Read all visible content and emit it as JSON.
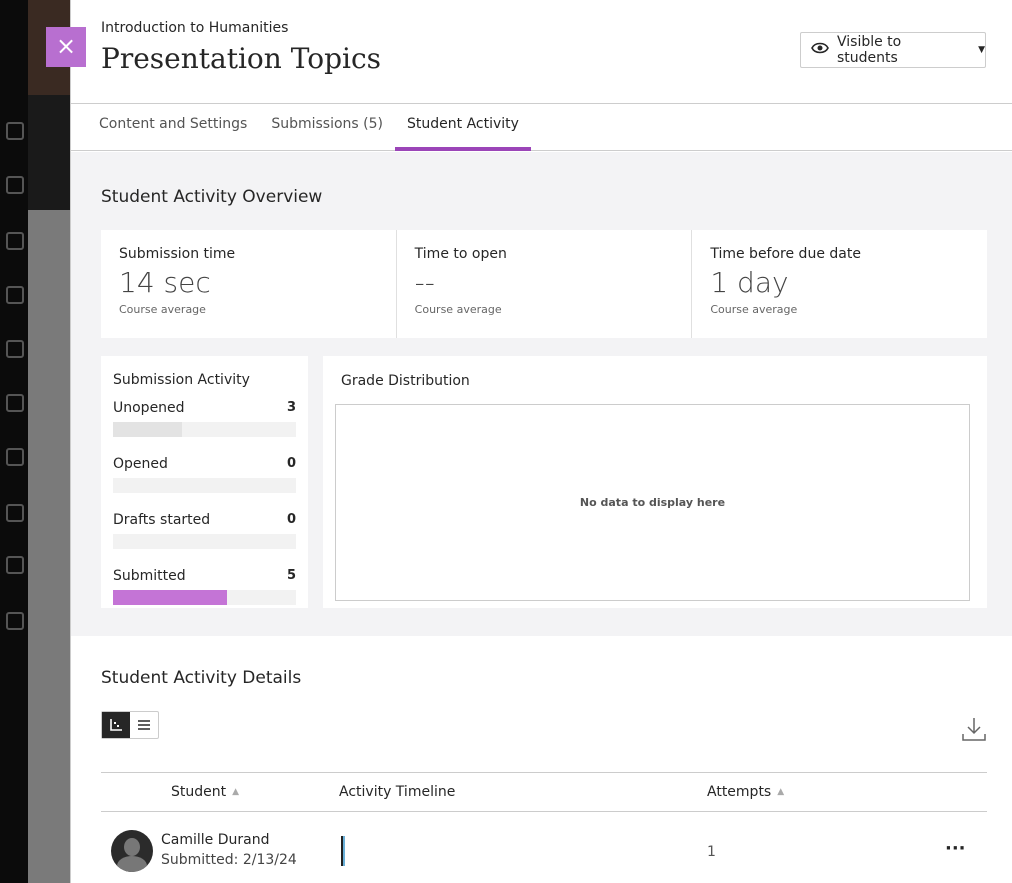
{
  "header": {
    "course": "Introduction to Humanities",
    "title": "Presentation Topics",
    "visibility": "Visible to students",
    "close_label": "×"
  },
  "tabs": [
    {
      "label": "Content and Settings"
    },
    {
      "label": "Submissions (5)"
    },
    {
      "label": "Student Activity",
      "active": true
    }
  ],
  "overview": {
    "title": "Student Activity Overview",
    "stats": [
      {
        "label": "Submission time",
        "value": "14 sec",
        "sub": "Course average"
      },
      {
        "label": "Time to open",
        "value": "--",
        "sub": "Course average"
      },
      {
        "label": "Time before due date",
        "value": "1 day",
        "sub": "Course average"
      }
    ],
    "submission_activity": {
      "title": "Submission Activity",
      "total": 8,
      "items": [
        {
          "label": "Unopened",
          "count": "3",
          "value": 3,
          "color": "#e3e3e3"
        },
        {
          "label": "Opened",
          "count": "0",
          "value": 0,
          "color": "#e3e3e3"
        },
        {
          "label": "Drafts started",
          "count": "0",
          "value": 0,
          "color": "#e3e3e3"
        },
        {
          "label": "Submitted",
          "count": "5",
          "value": 5,
          "color": "#c474d6"
        }
      ]
    },
    "grade_distribution": {
      "title": "Grade Distribution",
      "empty": "No data to display here"
    }
  },
  "details": {
    "title": "Student Activity Details",
    "columns": {
      "student": "Student",
      "timeline": "Activity Timeline",
      "attempts": "Attempts"
    },
    "rows": [
      {
        "name": "Camille Durand",
        "status": "Submitted: 2/13/24",
        "attempts": "1"
      }
    ]
  },
  "colors": {
    "accent": "#9b45b8",
    "close": "#b86fd0"
  }
}
